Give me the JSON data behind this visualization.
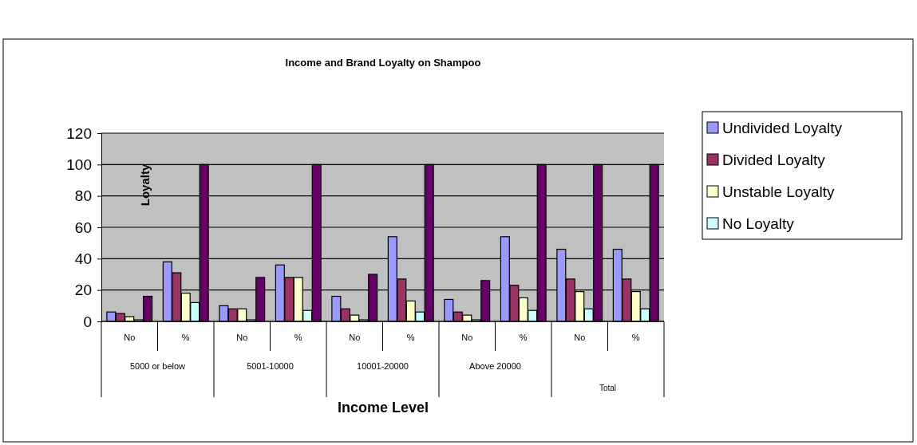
{
  "chart_data": {
    "type": "bar",
    "title": "Income and Brand Loyalty on Shampoo",
    "xlabel": "Income Level",
    "ylabel": "Loyalty",
    "categories": [
      "No",
      "%",
      "No",
      "%",
      "No",
      "%",
      "No",
      "%",
      "No",
      "%"
    ],
    "annotations": [
      "5000 or below",
      "5001-10000",
      "10001-20000",
      "Above 20000",
      "Total"
    ],
    "series": [
      {
        "name": "Undivided Loyalty",
        "color": "#9999ff",
        "values": [
          6,
          38,
          10,
          36,
          16,
          54,
          14,
          54,
          46,
          46
        ]
      },
      {
        "name": "Divided Loyalty",
        "color": "#993366",
        "values": [
          5,
          31,
          8,
          28,
          8,
          27,
          6,
          23,
          27,
          27
        ]
      },
      {
        "name": "Unstable Loyalty",
        "color": "#ffffcc",
        "values": [
          3,
          18,
          8,
          28,
          4,
          13,
          4,
          15,
          19,
          19
        ]
      },
      {
        "name": "No Loyalty",
        "color": "#ccffff",
        "values": [
          1,
          12,
          1,
          7,
          1,
          6,
          1,
          7,
          8,
          8
        ]
      },
      {
        "color": "#660066",
        "values": [
          16,
          100,
          28,
          100,
          30,
          100,
          26,
          100,
          100,
          100
        ]
      }
    ],
    "ylim": [
      0,
      120
    ],
    "yticks": [
      0,
      20,
      40,
      60,
      80,
      100,
      120
    ],
    "grid": "y",
    "legend": "right"
  }
}
